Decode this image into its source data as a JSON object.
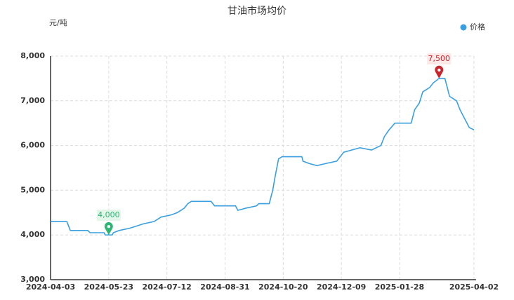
{
  "chart_data": {
    "type": "line",
    "title": "甘油市场均价",
    "y_label": "元/吨",
    "x": [
      "2024-04-03",
      "2024-04-17",
      "2024-04-20",
      "2024-05-05",
      "2024-05-07",
      "2024-05-19",
      "2024-05-20",
      "2024-05-23",
      "2024-05-26",
      "2024-05-27",
      "2024-06-01",
      "2024-06-10",
      "2024-06-22",
      "2024-07-01",
      "2024-07-07",
      "2024-07-16",
      "2024-07-21",
      "2024-07-27",
      "2024-07-30",
      "2024-08-02",
      "2024-08-19",
      "2024-08-22",
      "2024-09-09",
      "2024-09-11",
      "2024-09-18",
      "2024-09-27",
      "2024-09-29",
      "2024-10-08",
      "2024-10-11",
      "2024-10-13",
      "2024-10-16",
      "2024-10-19",
      "2024-11-05",
      "2024-11-06",
      "2024-11-11",
      "2024-11-18",
      "2024-11-26",
      "2024-12-05",
      "2024-12-11",
      "2024-12-25",
      "2025-01-04",
      "2025-01-12",
      "2025-01-15",
      "2025-01-19",
      "2025-01-24",
      "2025-02-07",
      "2025-02-10",
      "2025-02-14",
      "2025-02-17",
      "2025-02-23",
      "2025-02-26",
      "2025-03-03",
      "2025-03-08",
      "2025-03-12",
      "2025-03-18",
      "2025-03-21",
      "2025-03-25",
      "2025-03-29",
      "2025-04-02"
    ],
    "series": [
      {
        "name": "价格",
        "color": "#3a9fe0",
        "values": [
          4300,
          4300,
          4100,
          4100,
          4050,
          4050,
          4000,
          4000,
          4000,
          4050,
          4100,
          4150,
          4250,
          4300,
          4400,
          4450,
          4500,
          4600,
          4700,
          4750,
          4750,
          4650,
          4650,
          4550,
          4600,
          4650,
          4700,
          4700,
          5000,
          5300,
          5700,
          5750,
          5750,
          5650,
          5600,
          5550,
          5600,
          5650,
          5850,
          5950,
          5900,
          6000,
          6200,
          6350,
          6500,
          6500,
          6800,
          6950,
          7200,
          7300,
          7400,
          7500,
          7500,
          7100,
          7000,
          6800,
          6600,
          6400,
          6350
        ],
        "value_labels": [
          null,
          null,
          null,
          null,
          null,
          null,
          null,
          "4,000",
          null,
          null,
          null,
          null,
          null,
          null,
          null,
          null,
          null,
          null,
          null,
          null,
          null,
          null,
          null,
          null,
          null,
          null,
          null,
          null,
          null,
          null,
          null,
          null,
          null,
          null,
          null,
          null,
          null,
          null,
          null,
          null,
          null,
          null,
          null,
          null,
          null,
          null,
          null,
          null,
          null,
          null,
          null,
          "7,500",
          null,
          null,
          null,
          null,
          null,
          null,
          null
        ]
      }
    ],
    "min_color": "#2bb673",
    "max_color": "#c8242b",
    "xlim": [
      "2024-04-03",
      "2025-04-02"
    ],
    "xticks": [
      "2024-04-03",
      "2024-05-23",
      "2024-07-12",
      "2024-08-31",
      "2024-10-20",
      "2024-12-09",
      "2025-01-28",
      "2025-04-02"
    ],
    "ylim": [
      3000,
      8000
    ],
    "yticks": [
      {
        "value": 3000,
        "label": "3,000"
      },
      {
        "value": 4000,
        "label": "4,000"
      },
      {
        "value": 5000,
        "label": "5,000"
      },
      {
        "value": 6000,
        "label": "6,000"
      },
      {
        "value": 7000,
        "label": "7,000"
      },
      {
        "value": 8000,
        "label": "8,000"
      }
    ],
    "grid": true,
    "legend": "top-right"
  }
}
